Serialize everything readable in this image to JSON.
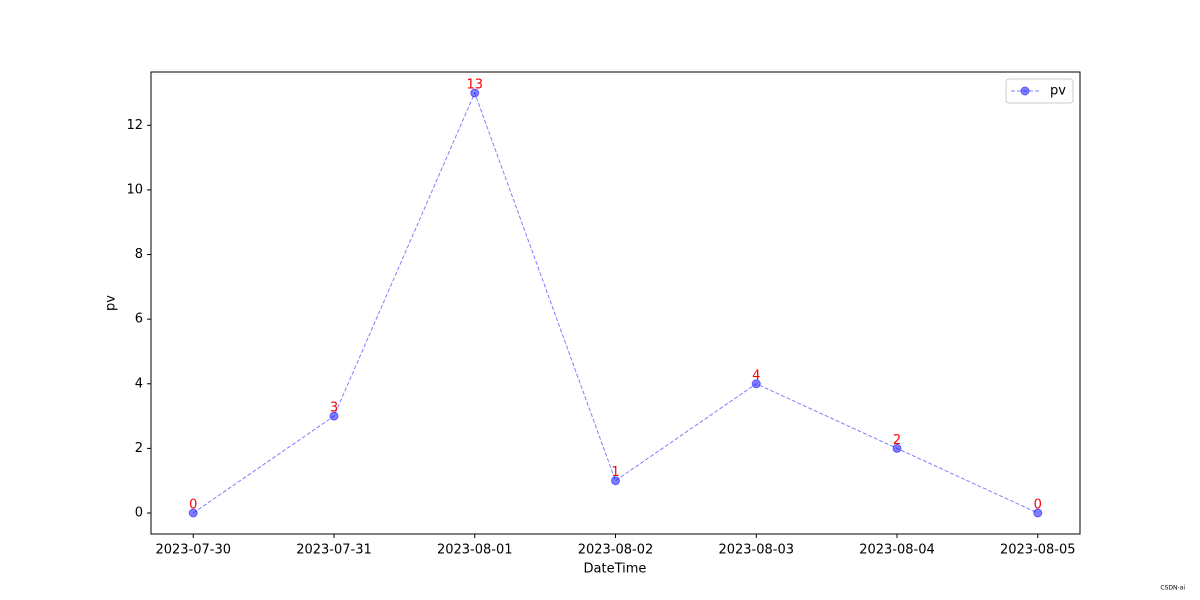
{
  "chart_data": {
    "type": "line",
    "x_label": "DateTime",
    "y_label": "pv",
    "categories": [
      "2023-07-30",
      "2023-07-31",
      "2023-08-01",
      "2023-08-02",
      "2023-08-03",
      "2023-08-04",
      "2023-08-05"
    ],
    "series": [
      {
        "name": "pv",
        "color": "blue",
        "values": [
          0,
          3,
          13,
          1,
          4,
          2,
          0
        ]
      }
    ],
    "ylim": [
      -0.65,
      13.65
    ],
    "yticks": [
      0,
      2,
      4,
      6,
      8,
      10,
      12
    ],
    "value_label_color": "red",
    "legend": "upper right",
    "grid": false,
    "watermark": "CSDN-ai"
  }
}
